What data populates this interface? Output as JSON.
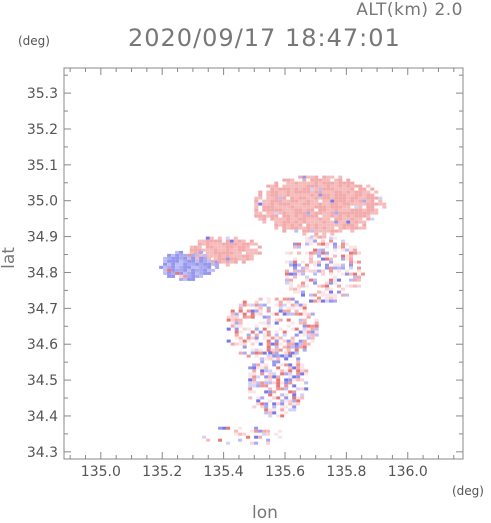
{
  "header": {
    "altitude_label": "ALT(km) 2.0",
    "timestamp": "2020/09/17 18:47:01"
  },
  "chart_data": {
    "type": "heatmap",
    "xlabel": "lon",
    "ylabel": "lat",
    "x_unit": "(deg)",
    "y_unit": "(deg)",
    "xlim": [
      134.88,
      136.18
    ],
    "ylim": [
      34.28,
      35.37
    ],
    "x_ticks": [
      135.0,
      135.2,
      135.4,
      135.6,
      135.8,
      136.0
    ],
    "x_tick_labels": [
      "135.0",
      "135.2",
      "135.4",
      "135.6",
      "135.8",
      "136.0"
    ],
    "y_ticks": [
      34.3,
      34.4,
      34.5,
      34.6,
      34.7,
      34.8,
      34.9,
      35.0,
      35.1,
      35.2,
      35.3
    ],
    "y_tick_labels": [
      "34.3",
      "34.4",
      "34.5",
      "34.6",
      "34.7",
      "34.8",
      "34.9",
      "35.0",
      "35.1",
      "35.2",
      "35.3"
    ],
    "grid": false,
    "colors": {
      "positive": "#f08a8a",
      "negative": "#8a8af0",
      "axis": "#888888"
    },
    "regions": [
      {
        "kind": "dense",
        "lon": [
          135.5,
          135.92
        ],
        "lat": [
          34.9,
          35.07
        ],
        "sign": "positive"
      },
      {
        "kind": "dense",
        "lon": [
          135.29,
          135.52
        ],
        "lat": [
          34.82,
          34.9
        ],
        "sign": "positive"
      },
      {
        "kind": "dense",
        "lon": [
          135.19,
          135.38
        ],
        "lat": [
          34.78,
          34.86
        ],
        "sign": "negative"
      },
      {
        "kind": "mixed",
        "lon": [
          135.6,
          135.85
        ],
        "lat": [
          34.72,
          34.9
        ],
        "sign": "mixed"
      },
      {
        "kind": "mixed",
        "lon": [
          135.41,
          135.7
        ],
        "lat": [
          34.56,
          34.73
        ],
        "sign": "mixed"
      },
      {
        "kind": "mixed",
        "lon": [
          135.48,
          135.67
        ],
        "lat": [
          34.4,
          34.58
        ],
        "sign": "mixed"
      },
      {
        "kind": "sparse",
        "lon": [
          135.33,
          135.6
        ],
        "lat": [
          34.32,
          34.37
        ],
        "sign": "mixed"
      }
    ]
  }
}
